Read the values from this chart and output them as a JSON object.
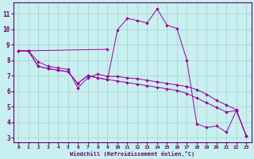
{
  "xlabel": "Windchill (Refroidissement éolien,°C)",
  "bg_color": "#c8f0f0",
  "line_color": "#990099",
  "grid_color": "#aacccc",
  "axis_color": "#660066",
  "xlim": [
    -0.5,
    23.5
  ],
  "ylim": [
    2.7,
    11.7
  ],
  "xticks": [
    0,
    1,
    2,
    3,
    4,
    5,
    6,
    7,
    8,
    9,
    10,
    11,
    12,
    13,
    14,
    15,
    16,
    17,
    18,
    19,
    20,
    21,
    22,
    23
  ],
  "yticks": [
    3,
    4,
    5,
    6,
    7,
    8,
    9,
    10,
    11
  ],
  "curve1_x": [
    0,
    1,
    9
  ],
  "curve1_y": [
    8.6,
    8.6,
    8.7
  ],
  "curve2_x": [
    1,
    2,
    3,
    4,
    5,
    6,
    7,
    8,
    9,
    10,
    11,
    12,
    13,
    14,
    15,
    16,
    17,
    18,
    19,
    20,
    21,
    22,
    23
  ],
  "curve2_y": [
    8.6,
    7.9,
    7.6,
    7.5,
    7.4,
    6.2,
    6.85,
    7.1,
    6.95,
    6.95,
    6.85,
    6.8,
    6.7,
    6.6,
    6.5,
    6.4,
    6.3,
    6.1,
    5.8,
    5.4,
    5.1,
    4.8,
    3.1
  ],
  "curve3_x": [
    0,
    1,
    2,
    3,
    4,
    5,
    6,
    7,
    8,
    9,
    10,
    11,
    12,
    13,
    14,
    15,
    16,
    17,
    18,
    19,
    20,
    21,
    22,
    23
  ],
  "curve3_y": [
    8.6,
    8.6,
    7.6,
    7.45,
    7.35,
    7.25,
    6.5,
    7.0,
    6.85,
    6.75,
    9.95,
    10.7,
    10.55,
    10.4,
    11.3,
    10.25,
    10.05,
    8.0,
    3.9,
    3.65,
    3.75,
    3.35,
    4.75,
    3.1
  ],
  "curve4_x": [
    0,
    1,
    2,
    3,
    4,
    5,
    6,
    7,
    8,
    9,
    10,
    11,
    12,
    13,
    14,
    15,
    16,
    17,
    18,
    19,
    20,
    21,
    22,
    23
  ],
  "curve4_y": [
    8.6,
    8.6,
    7.6,
    7.45,
    7.35,
    7.25,
    6.5,
    7.0,
    6.85,
    6.75,
    6.65,
    6.55,
    6.45,
    6.35,
    6.25,
    6.15,
    6.05,
    5.85,
    5.55,
    5.25,
    4.95,
    4.65,
    4.75,
    3.1
  ]
}
